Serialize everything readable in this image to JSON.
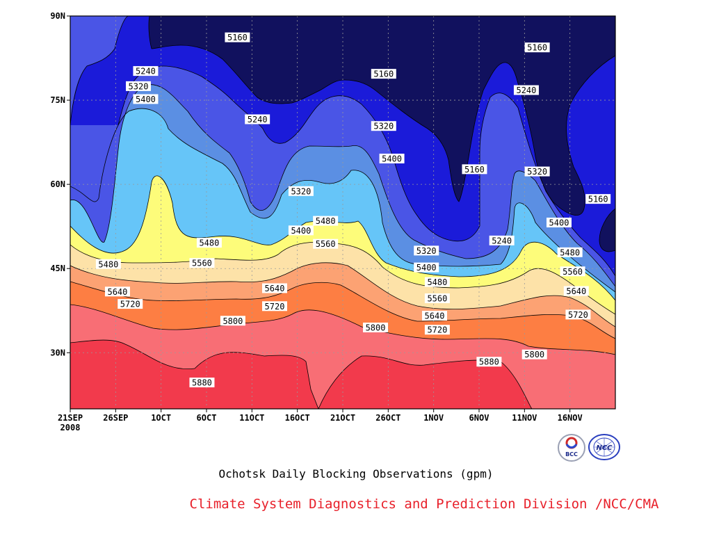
{
  "chart_data": {
    "type": "heatmap",
    "title": "Ochotsk Daily Blocking Observations (gpm)",
    "credit": "Climate System Diagnostics and Prediction Division /NCC/CMA",
    "xlabel": "",
    "ylabel": "",
    "x_ticks": [
      "21SEP",
      "26SEP",
      "1OCT",
      "6OCT",
      "11OCT",
      "16OCT",
      "21OCT",
      "26OCT",
      "1NOV",
      "6NOV",
      "11NOV",
      "16NOV"
    ],
    "x_year": "2008",
    "x_range": [
      "21SEP2008",
      "20NOV2008"
    ],
    "y_ticks": [
      "90N",
      "75N",
      "60N",
      "45N",
      "30N"
    ],
    "y_range": [
      20,
      90
    ],
    "grid": true,
    "levels": [
      5160,
      5240,
      5320,
      5400,
      5480,
      5560,
      5640,
      5720,
      5800,
      5880
    ],
    "colors": [
      "#11115e",
      "#1b1bd9",
      "#4a55e6",
      "#5b8fe3",
      "#66c5f8",
      "#fdfc7a",
      "#fde2a8",
      "#fca273",
      "#fd7e43",
      "#f86e75",
      "#f23a4c"
    ],
    "contour_labels": [
      {
        "value": "5160",
        "day": 18.4,
        "lat": 86.2
      },
      {
        "value": "5160",
        "day": 34.5,
        "lat": 79.7
      },
      {
        "value": "5160",
        "day": 51.4,
        "lat": 84.4
      },
      {
        "value": "5160",
        "day": 44.5,
        "lat": 62.7
      },
      {
        "value": "5160",
        "day": 58.1,
        "lat": 57.4
      },
      {
        "value": "5240",
        "day": 8.3,
        "lat": 80.2
      },
      {
        "value": "5240",
        "day": 20.6,
        "lat": 71.6
      },
      {
        "value": "5240",
        "day": 50.2,
        "lat": 76.8
      },
      {
        "value": "5240",
        "day": 47.5,
        "lat": 50.0
      },
      {
        "value": "5320",
        "day": 7.5,
        "lat": 77.5
      },
      {
        "value": "5320",
        "day": 25.4,
        "lat": 58.8
      },
      {
        "value": "5320",
        "day": 34.5,
        "lat": 70.4
      },
      {
        "value": "5320",
        "day": 39.2,
        "lat": 48.2
      },
      {
        "value": "5320",
        "day": 51.4,
        "lat": 62.3
      },
      {
        "value": "5400",
        "day": 8.3,
        "lat": 75.2
      },
      {
        "value": "5400",
        "day": 25.4,
        "lat": 51.8
      },
      {
        "value": "5400",
        "day": 35.4,
        "lat": 64.6
      },
      {
        "value": "5400",
        "day": 39.2,
        "lat": 45.2
      },
      {
        "value": "5400",
        "day": 53.8,
        "lat": 53.2
      },
      {
        "value": "5480",
        "day": 4.2,
        "lat": 45.8
      },
      {
        "value": "5480",
        "day": 15.3,
        "lat": 49.6
      },
      {
        "value": "5480",
        "day": 28.1,
        "lat": 53.5
      },
      {
        "value": "5480",
        "day": 40.4,
        "lat": 42.6
      },
      {
        "value": "5480",
        "day": 55.0,
        "lat": 47.9
      },
      {
        "value": "5560",
        "day": 14.5,
        "lat": 46.0
      },
      {
        "value": "5560",
        "day": 28.1,
        "lat": 49.4
      },
      {
        "value": "5560",
        "day": 40.4,
        "lat": 39.7
      },
      {
        "value": "5560",
        "day": 55.3,
        "lat": 44.5
      },
      {
        "value": "5640",
        "day": 5.2,
        "lat": 40.9
      },
      {
        "value": "5640",
        "day": 22.5,
        "lat": 41.5
      },
      {
        "value": "5640",
        "day": 40.1,
        "lat": 36.6
      },
      {
        "value": "5640",
        "day": 55.7,
        "lat": 41.0
      },
      {
        "value": "5720",
        "day": 6.6,
        "lat": 38.7
      },
      {
        "value": "5720",
        "day": 22.5,
        "lat": 38.3
      },
      {
        "value": "5720",
        "day": 40.4,
        "lat": 34.1
      },
      {
        "value": "5720",
        "day": 55.9,
        "lat": 36.8
      },
      {
        "value": "5800",
        "day": 17.9,
        "lat": 35.7
      },
      {
        "value": "5800",
        "day": 33.6,
        "lat": 34.5
      },
      {
        "value": "5800",
        "day": 51.1,
        "lat": 29.7
      },
      {
        "value": "5880",
        "day": 14.5,
        "lat": 24.7
      },
      {
        "value": "5880",
        "day": 46.1,
        "lat": 28.4
      }
    ]
  },
  "logos": [
    "BCC",
    "NCC"
  ]
}
